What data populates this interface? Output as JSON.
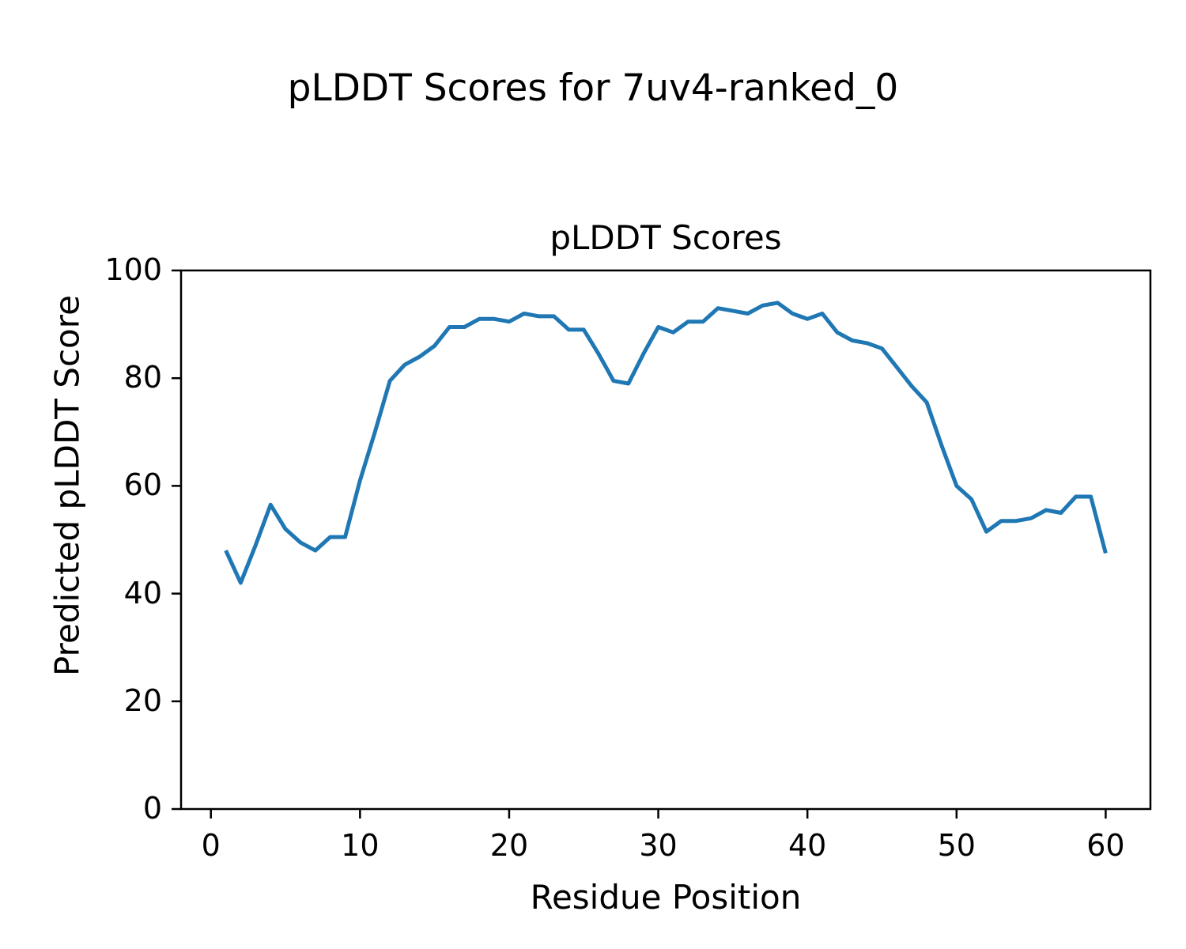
{
  "chart_data": {
    "type": "line",
    "suptitle": "pLDDT Scores for 7uv4-ranked_0",
    "title": "pLDDT Scores",
    "xlabel": "Residue Position",
    "ylabel": "Predicted pLDDT Score",
    "xlim": [
      -2,
      63
    ],
    "ylim": [
      0,
      100
    ],
    "x_ticks": [
      0,
      10,
      20,
      30,
      40,
      50,
      60
    ],
    "y_ticks": [
      0,
      20,
      40,
      60,
      80,
      100
    ],
    "grid": false,
    "legend": "none",
    "line_color": "#1f77b4",
    "line_width": 5,
    "axis_color": "#000000",
    "x": [
      1,
      2,
      3,
      4,
      5,
      6,
      7,
      8,
      9,
      10,
      11,
      12,
      13,
      14,
      15,
      16,
      17,
      18,
      19,
      20,
      21,
      22,
      23,
      24,
      25,
      26,
      27,
      28,
      29,
      30,
      31,
      32,
      33,
      34,
      35,
      36,
      37,
      38,
      39,
      40,
      41,
      42,
      43,
      44,
      45,
      46,
      47,
      48,
      49,
      50,
      51,
      52,
      53,
      54,
      55,
      56,
      57,
      58,
      59,
      60
    ],
    "y": [
      48,
      42,
      49,
      56.5,
      52,
      49.5,
      48,
      50.5,
      50.5,
      61,
      70,
      79.5,
      82.5,
      84,
      86,
      89.5,
      89.5,
      91,
      91,
      90.5,
      92,
      91.5,
      91.5,
      89,
      89,
      84.5,
      79.5,
      79,
      84.5,
      89.5,
      88.5,
      90.5,
      90.5,
      93,
      92.5,
      92,
      93.5,
      94,
      92,
      91,
      92,
      88.5,
      87,
      86.5,
      85.5,
      82,
      78.5,
      75.5,
      67.5,
      60,
      57.5,
      51.5,
      53.5,
      53.5,
      54,
      55.5,
      55,
      58,
      58,
      47.5
    ]
  }
}
